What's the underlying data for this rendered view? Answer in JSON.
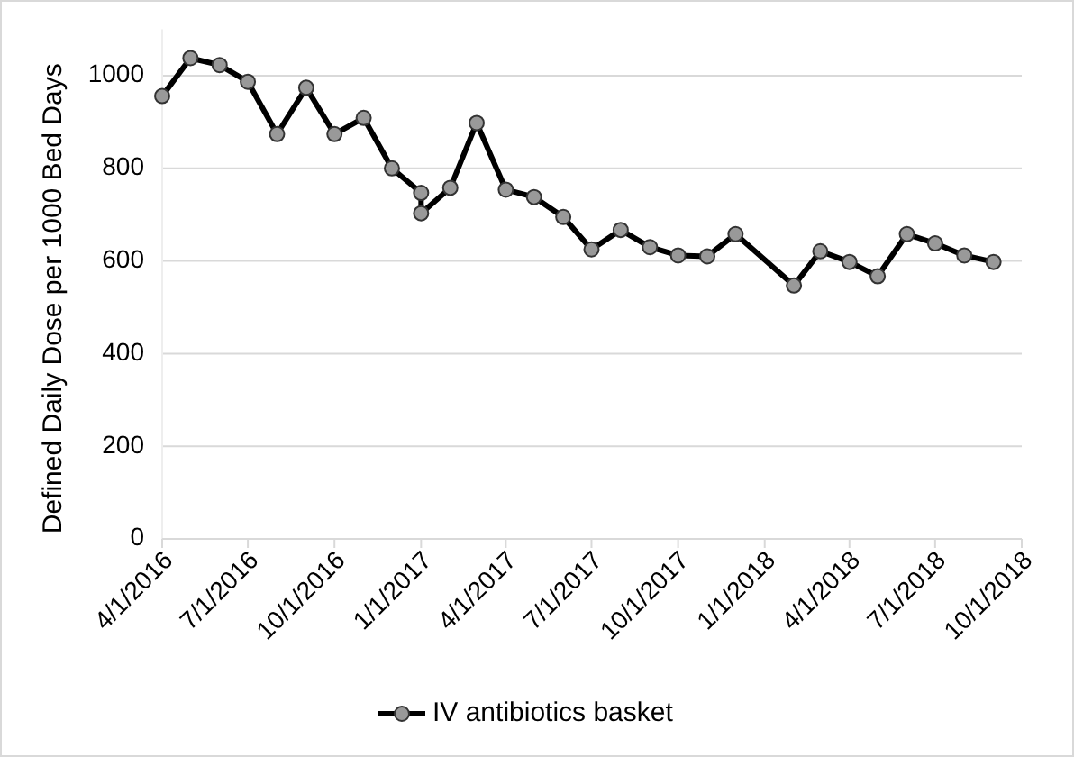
{
  "chart_data": {
    "type": "line",
    "ylabel": "Defined Daily Dose per 1000 Bed Days",
    "x": [
      "2016-04",
      "2016-05",
      "2016-06",
      "2016-07",
      "2016-08",
      "2016-09",
      "2016-10",
      "2016-11",
      "2016-12",
      "2017-01",
      "2017-01",
      "2017-02",
      "2017-03",
      "2017-04",
      "2017-05",
      "2017-06",
      "2017-07",
      "2017-08",
      "2017-09",
      "2017-10",
      "2017-11",
      "2017-12",
      "2018-02",
      "2018-03",
      "2018-04",
      "2018-05",
      "2018-06",
      "2018-07",
      "2018-08",
      "2018-09"
    ],
    "series": [
      {
        "name": "IV antibiotics basket",
        "color": "#000000",
        "values": [
          956,
          1038,
          1023,
          987,
          874,
          974,
          874,
          909,
          800,
          747,
          703,
          758,
          898,
          754,
          738,
          695,
          625,
          667,
          630,
          612,
          610,
          658,
          547,
          621,
          598,
          567,
          658,
          638,
          612,
          598
        ]
      }
    ],
    "xlim": [
      "2016-04-01",
      "2018-10-01"
    ],
    "xticks": [
      {
        "value": "2016-04-01",
        "label": "4/1/2016"
      },
      {
        "value": "2016-07-01",
        "label": "7/1/2016"
      },
      {
        "value": "2016-10-01",
        "label": "10/1/2016"
      },
      {
        "value": "2017-01-01",
        "label": "1/1/2017"
      },
      {
        "value": "2017-04-01",
        "label": "4/1/2017"
      },
      {
        "value": "2017-07-01",
        "label": "7/1/2017"
      },
      {
        "value": "2017-10-01",
        "label": "10/1/2017"
      },
      {
        "value": "2018-01-01",
        "label": "1/1/2018"
      },
      {
        "value": "2018-04-01",
        "label": "4/1/2018"
      },
      {
        "value": "2018-07-01",
        "label": "7/1/2018"
      },
      {
        "value": "2018-10-01",
        "label": "10/1/2018"
      }
    ],
    "ylim": [
      0,
      1100
    ],
    "yticks": [
      0,
      200,
      400,
      600,
      800,
      1000
    ],
    "grid": "y",
    "legend": "bottom",
    "marker": "circle",
    "line_style": "solid"
  }
}
